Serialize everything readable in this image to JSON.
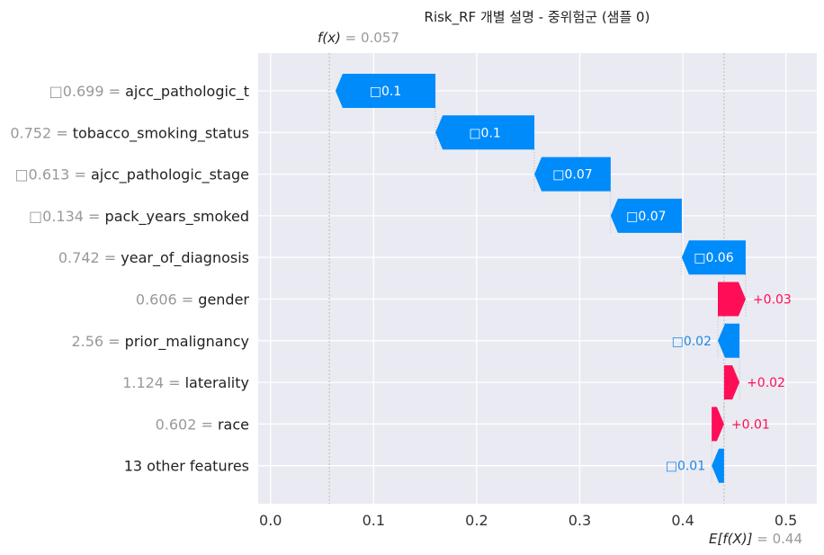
{
  "title": "Risk_RF 개별 설명 - 중위험군 (샘플 0)",
  "fx": {
    "label": "f(x)",
    "value": "0.057"
  },
  "ex": {
    "label": "E[f(X)]",
    "value": "0.44"
  },
  "colors": {
    "negative": "#008BFB",
    "negative_text": "#1E88E5",
    "positive": "#FF0D57",
    "panel": "#EAEAF2",
    "grid": "#ffffff"
  },
  "chart_data": {
    "type": "waterfall",
    "title": "Risk_RF 개별 설명 - 중위험군 (샘플 0)",
    "base_value": 0.44,
    "output_value": 0.057,
    "xlim": [
      -0.012,
      0.53
    ],
    "xticks": [
      0.0,
      0.1,
      0.2,
      0.3,
      0.4,
      0.5
    ],
    "xtick_labels": [
      "0.0",
      "0.1",
      "0.2",
      "0.3",
      "0.4",
      "0.5"
    ],
    "grid": true,
    "features": [
      {
        "value_label": "0.699",
        "value_prefix_glyph": true,
        "name": "ajcc_pathologic_t",
        "shap": -0.097,
        "label": "0.1"
      },
      {
        "value_label": "0.752",
        "value_prefix_glyph": false,
        "name": "tobacco_smoking_status",
        "shap": -0.096,
        "label": "0.1"
      },
      {
        "value_label": "0.613",
        "value_prefix_glyph": true,
        "name": "ajcc_pathologic_stage",
        "shap": -0.074,
        "label": "0.07"
      },
      {
        "value_label": "0.134",
        "value_prefix_glyph": true,
        "name": "pack_years_smoked",
        "shap": -0.069,
        "label": "0.07"
      },
      {
        "value_label": "0.742",
        "value_prefix_glyph": false,
        "name": "year_of_diagnosis",
        "shap": -0.062,
        "label": "0.06"
      },
      {
        "value_label": "0.606",
        "value_prefix_glyph": false,
        "name": "gender",
        "shap": 0.027,
        "label": "+0.03"
      },
      {
        "value_label": "2.56",
        "value_prefix_glyph": false,
        "name": "prior_malignancy",
        "shap": -0.021,
        "label": "0.02"
      },
      {
        "value_label": "1.124",
        "value_prefix_glyph": false,
        "name": "laterality",
        "shap": 0.015,
        "label": "+0.02"
      },
      {
        "value_label": "0.602",
        "value_prefix_glyph": false,
        "name": "race",
        "shap": 0.012,
        "label": "+0.01"
      },
      {
        "value_label": "",
        "value_prefix_glyph": false,
        "name": "13 other features",
        "shap": -0.012,
        "label": "0.01"
      }
    ]
  }
}
